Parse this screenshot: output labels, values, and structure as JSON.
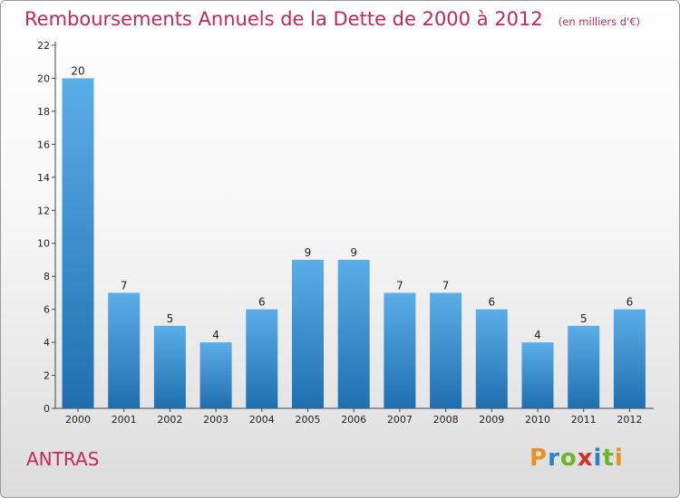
{
  "header": {
    "title": "Remboursements Annuels de la Dette de 2000 à 2012",
    "unit": "(en milliers d'€)"
  },
  "footer": {
    "commune": "ANTRAS",
    "logo_text": "Proxiti"
  },
  "colors": {
    "title": "#c4275c",
    "bar_top": "#5aaee8",
    "bar_bottom": "#1f6fb0",
    "logo_letters": [
      "#e8931f",
      "#2a82c9",
      "#6fb52b",
      "#d62d27",
      "#2a82c9",
      "#6fb52b",
      "#e8931f"
    ]
  },
  "chart_data": {
    "type": "bar",
    "title": "Remboursements Annuels de la Dette de 2000 à 2012",
    "xlabel": "",
    "ylabel": "",
    "categories": [
      "2000",
      "2001",
      "2002",
      "2003",
      "2004",
      "2005",
      "2006",
      "2007",
      "2008",
      "2009",
      "2010",
      "2011",
      "2012"
    ],
    "values": [
      20,
      7,
      5,
      4,
      6,
      9,
      9,
      7,
      7,
      6,
      4,
      5,
      6
    ],
    "ylim": [
      0,
      22
    ],
    "yticks": [
      0,
      2,
      4,
      6,
      8,
      10,
      12,
      14,
      16,
      18,
      20,
      22
    ],
    "grid": false,
    "legend": "none"
  }
}
